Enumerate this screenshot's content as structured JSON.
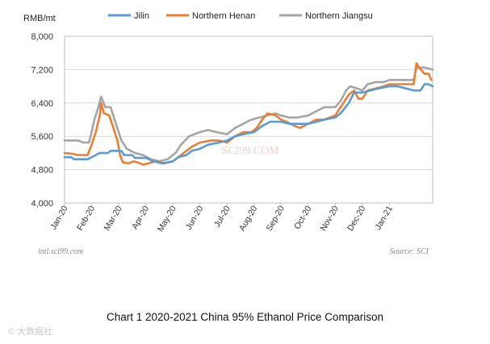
{
  "chart_data": {
    "type": "line",
    "title": "",
    "ylabel": "RMB/mt",
    "xlabel": "",
    "ylim": [
      4000,
      8000
    ],
    "yticks": [
      4000,
      4800,
      5600,
      6400,
      7200,
      8000
    ],
    "ytick_labels": [
      "4,000",
      "4,800",
      "5,600",
      "6,400",
      "7,200",
      "8,000"
    ],
    "xlim": [
      0,
      13.6
    ],
    "categories": [
      "Jan-20",
      "Feb-20",
      "Mar-20",
      "Apr-20",
      "May-20",
      "Jun-20",
      "Jul-20",
      "Aug-20",
      "Sep-20",
      "Oct-20",
      "Nov-20",
      "Dec-20",
      "Jan-21"
    ],
    "grid": true,
    "legend": "top",
    "series": [
      {
        "name": "Jilin",
        "color": "#5b9bd5",
        "points": [
          [
            0.0,
            5100
          ],
          [
            0.25,
            5100
          ],
          [
            0.35,
            5050
          ],
          [
            0.85,
            5050
          ],
          [
            1.0,
            5100
          ],
          [
            1.3,
            5200
          ],
          [
            1.6,
            5200
          ],
          [
            1.7,
            5250
          ],
          [
            2.1,
            5250
          ],
          [
            2.2,
            5150
          ],
          [
            2.5,
            5150
          ],
          [
            2.6,
            5080
          ],
          [
            3.0,
            5080
          ],
          [
            3.3,
            5000
          ],
          [
            3.6,
            4950
          ],
          [
            4.0,
            5000
          ],
          [
            4.2,
            5100
          ],
          [
            4.5,
            5150
          ],
          [
            4.7,
            5250
          ],
          [
            5.0,
            5300
          ],
          [
            5.3,
            5400
          ],
          [
            5.7,
            5450
          ],
          [
            6.0,
            5500
          ],
          [
            6.3,
            5600
          ],
          [
            6.6,
            5650
          ],
          [
            7.0,
            5700
          ],
          [
            7.3,
            5850
          ],
          [
            7.6,
            5950
          ],
          [
            8.0,
            5950
          ],
          [
            8.3,
            5900
          ],
          [
            8.6,
            5900
          ],
          [
            9.0,
            5900
          ],
          [
            9.3,
            5950
          ],
          [
            9.6,
            6000
          ],
          [
            10.0,
            6050
          ],
          [
            10.2,
            6150
          ],
          [
            10.5,
            6400
          ],
          [
            10.7,
            6650
          ],
          [
            11.0,
            6650
          ],
          [
            11.3,
            6700
          ],
          [
            11.6,
            6750
          ],
          [
            12.0,
            6800
          ],
          [
            12.3,
            6800
          ],
          [
            12.6,
            6750
          ],
          [
            12.9,
            6700
          ],
          [
            13.15,
            6700
          ],
          [
            13.3,
            6850
          ],
          [
            13.45,
            6850
          ],
          [
            13.6,
            6800
          ]
        ]
      },
      {
        "name": "Northern Henan",
        "color": "#ed7d31",
        "points": [
          [
            0.0,
            5200
          ],
          [
            0.3,
            5180
          ],
          [
            0.5,
            5150
          ],
          [
            0.85,
            5150
          ],
          [
            1.0,
            5400
          ],
          [
            1.15,
            5700
          ],
          [
            1.3,
            6100
          ],
          [
            1.35,
            6400
          ],
          [
            1.45,
            6150
          ],
          [
            1.65,
            6100
          ],
          [
            1.8,
            5800
          ],
          [
            1.95,
            5500
          ],
          [
            2.05,
            5150
          ],
          [
            2.15,
            4980
          ],
          [
            2.35,
            4950
          ],
          [
            2.55,
            5000
          ],
          [
            2.8,
            4950
          ],
          [
            2.9,
            4920
          ],
          [
            3.1,
            4950
          ],
          [
            3.35,
            5000
          ],
          [
            3.7,
            4950
          ],
          [
            4.0,
            5000
          ],
          [
            4.2,
            5100
          ],
          [
            4.4,
            5200
          ],
          [
            4.7,
            5350
          ],
          [
            5.0,
            5450
          ],
          [
            5.4,
            5500
          ],
          [
            5.7,
            5500
          ],
          [
            6.0,
            5450
          ],
          [
            6.3,
            5600
          ],
          [
            6.6,
            5700
          ],
          [
            6.9,
            5700
          ],
          [
            7.1,
            5800
          ],
          [
            7.3,
            6000
          ],
          [
            7.5,
            6150
          ],
          [
            7.8,
            6100
          ],
          [
            8.0,
            6000
          ],
          [
            8.2,
            5950
          ],
          [
            8.5,
            5850
          ],
          [
            8.7,
            5800
          ],
          [
            9.0,
            5900
          ],
          [
            9.3,
            6000
          ],
          [
            9.6,
            6000
          ],
          [
            10.0,
            6100
          ],
          [
            10.2,
            6300
          ],
          [
            10.5,
            6600
          ],
          [
            10.7,
            6700
          ],
          [
            10.85,
            6500
          ],
          [
            11.0,
            6500
          ],
          [
            11.2,
            6700
          ],
          [
            11.5,
            6750
          ],
          [
            11.8,
            6800
          ],
          [
            12.0,
            6850
          ],
          [
            12.4,
            6850
          ],
          [
            12.7,
            6850
          ],
          [
            12.9,
            6850
          ],
          [
            13.0,
            7350
          ],
          [
            13.1,
            7250
          ],
          [
            13.3,
            7100
          ],
          [
            13.45,
            7100
          ],
          [
            13.55,
            6950
          ]
        ]
      },
      {
        "name": "Northern Jiangsu",
        "color": "#a5a5a5",
        "points": [
          [
            0.0,
            5500
          ],
          [
            0.5,
            5500
          ],
          [
            0.7,
            5450
          ],
          [
            0.9,
            5450
          ],
          [
            1.0,
            5700
          ],
          [
            1.1,
            6000
          ],
          [
            1.25,
            6300
          ],
          [
            1.35,
            6550
          ],
          [
            1.5,
            6300
          ],
          [
            1.7,
            6300
          ],
          [
            1.9,
            5900
          ],
          [
            2.1,
            5500
          ],
          [
            2.3,
            5300
          ],
          [
            2.6,
            5200
          ],
          [
            2.9,
            5150
          ],
          [
            3.2,
            5050
          ],
          [
            3.5,
            5000
          ],
          [
            3.8,
            5050
          ],
          [
            4.1,
            5200
          ],
          [
            4.3,
            5400
          ],
          [
            4.6,
            5600
          ],
          [
            5.0,
            5700
          ],
          [
            5.3,
            5750
          ],
          [
            5.6,
            5700
          ],
          [
            6.0,
            5650
          ],
          [
            6.3,
            5800
          ],
          [
            6.6,
            5900
          ],
          [
            6.9,
            6000
          ],
          [
            7.2,
            6050
          ],
          [
            7.5,
            6100
          ],
          [
            7.8,
            6150
          ],
          [
            8.0,
            6100
          ],
          [
            8.3,
            6050
          ],
          [
            8.6,
            6050
          ],
          [
            9.0,
            6100
          ],
          [
            9.3,
            6200
          ],
          [
            9.6,
            6300
          ],
          [
            10.0,
            6300
          ],
          [
            10.2,
            6450
          ],
          [
            10.4,
            6700
          ],
          [
            10.55,
            6800
          ],
          [
            10.8,
            6750
          ],
          [
            11.0,
            6700
          ],
          [
            11.2,
            6850
          ],
          [
            11.5,
            6900
          ],
          [
            11.8,
            6900
          ],
          [
            12.0,
            6950
          ],
          [
            12.5,
            6950
          ],
          [
            12.9,
            6950
          ],
          [
            13.0,
            7250
          ],
          [
            13.3,
            7250
          ],
          [
            13.6,
            7200
          ]
        ]
      }
    ],
    "annotations": {
      "left_source": "intl.sci99.com",
      "right_source": "Source: SCI"
    }
  },
  "caption": "Chart 1 2020-2021 China 95% Ethanol Price Comparison",
  "watermark": "SCI99.COM",
  "footer_mark": "© 大数据社"
}
